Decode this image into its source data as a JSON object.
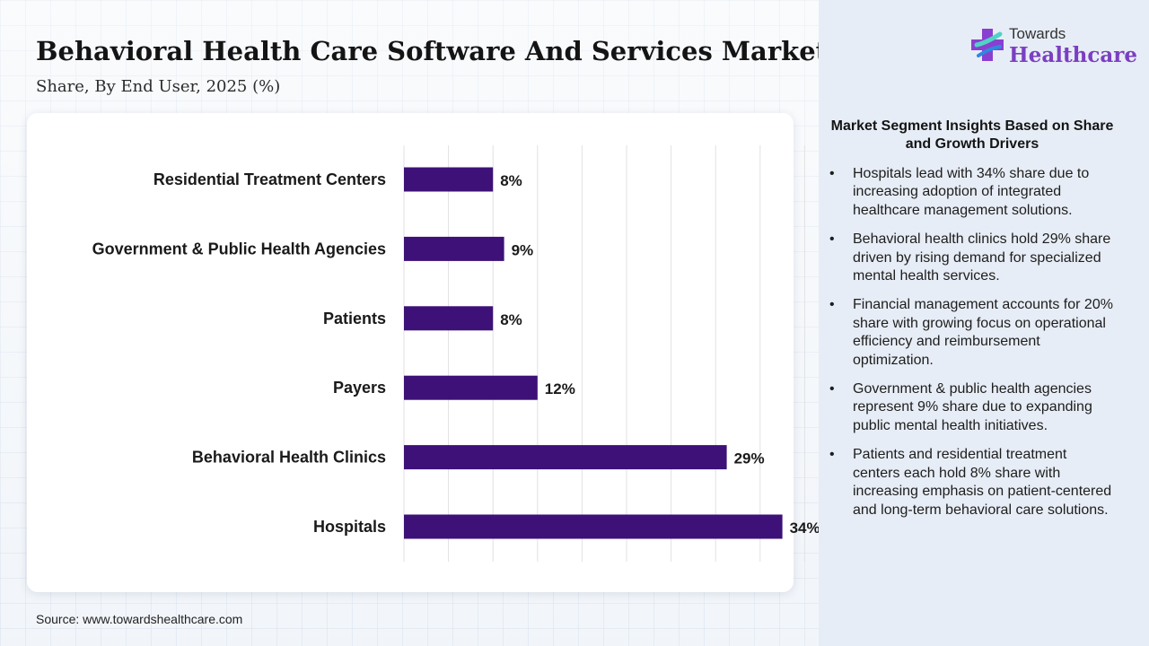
{
  "header": {
    "title": "Behavioral Health Care Software And Services Market",
    "subtitle": "Share, By End User, 2025 (%)"
  },
  "logo": {
    "line1": "Towards",
    "line2": "Healthcare",
    "icon": "plus-cross-icon"
  },
  "source": "Source: www.towardshealthcare.com",
  "insights": {
    "title": "Market Segment Insights Based on Share and Growth Drivers",
    "items": [
      "Hospitals lead with 34% share due to increasing adoption of integrated healthcare management solutions.",
      "Behavioral health clinics hold 29% share driven by rising demand for specialized mental health services.",
      "Financial management accounts for 20% share with growing focus on operational efficiency and reimbursement optimization.",
      "Government & public health agencies represent 9% share due to expanding public mental health initiatives.",
      "Patients and residential treatment centers each hold 8% share with increasing emphasis on patient-centered and long-term behavioral care solutions."
    ]
  },
  "colors": {
    "bar": "#3d1178",
    "brand_purple": "#7b3fc2",
    "grid": "#e2e2e2"
  },
  "chart_data": {
    "type": "bar",
    "orientation": "horizontal",
    "categories": [
      "Residential Treatment Centers",
      "Government & Public Health Agencies",
      "Patients",
      "Payers",
      "Behavioral Health Clinics",
      "Hospitals"
    ],
    "values": [
      8,
      9,
      8,
      12,
      29,
      34
    ],
    "value_labels": [
      "8%",
      "9%",
      "8%",
      "12%",
      "29%",
      "34%"
    ],
    "xlim": [
      0,
      40
    ],
    "grid": true,
    "legend": "none"
  }
}
